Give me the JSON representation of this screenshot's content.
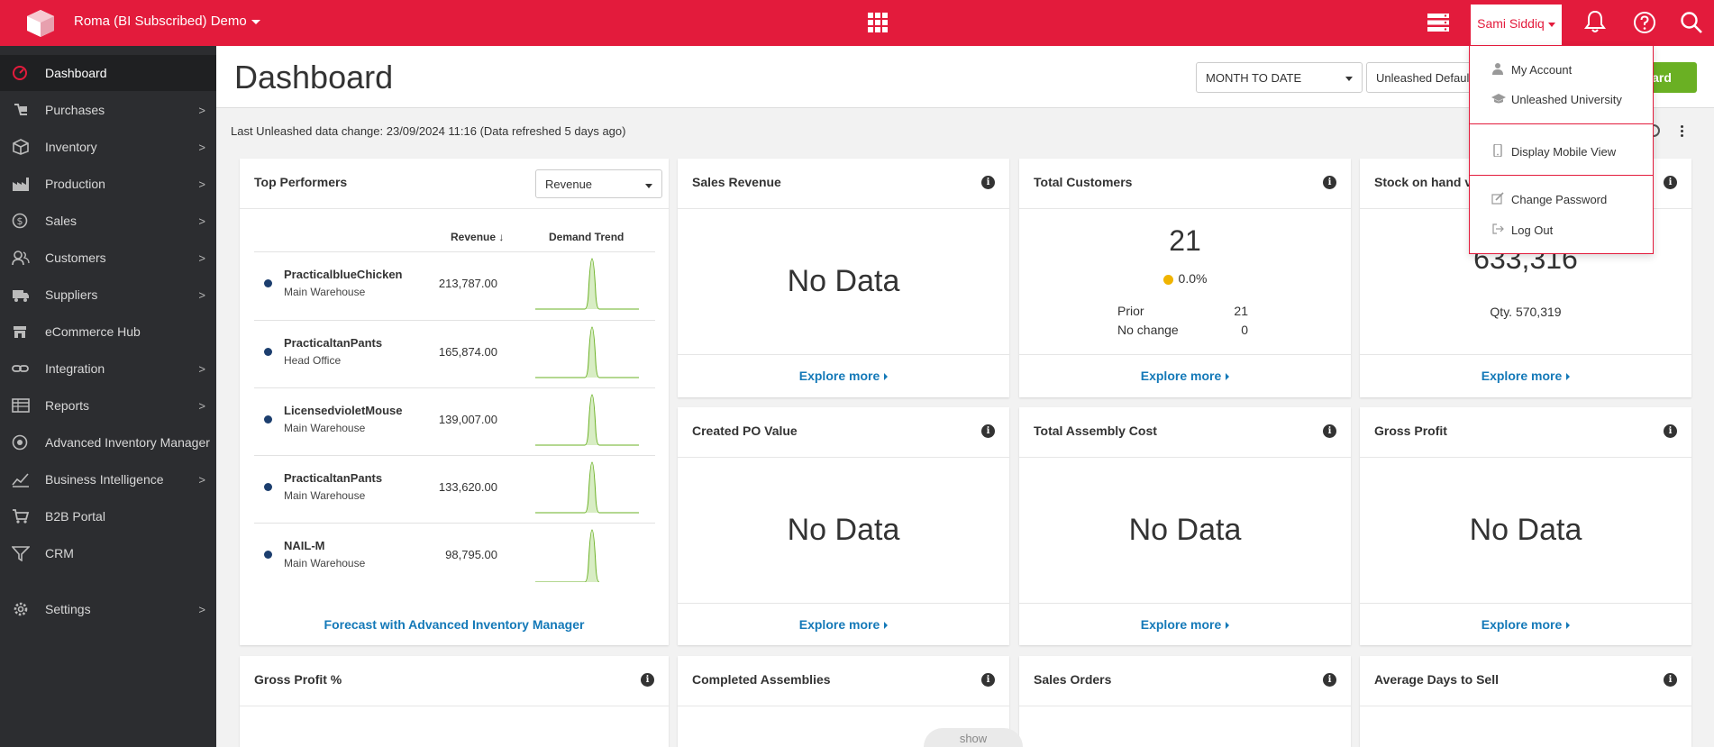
{
  "topbar": {
    "company": "Roma (BI Subscribed) Demo",
    "user": "Sami Siddiq",
    "icons": [
      "logo-icon",
      "apps-grid-icon",
      "server-icon",
      "bell-icon",
      "help-icon",
      "search-icon"
    ]
  },
  "user_menu": {
    "items": [
      "My Account",
      "Unleashed University",
      "Display Mobile View",
      "Change Password",
      "Log Out"
    ]
  },
  "sidebar": {
    "items": [
      {
        "label": "Dashboard",
        "icon": "dashboard-icon",
        "has_children": false
      },
      {
        "label": "Purchases",
        "icon": "purchases-icon",
        "has_children": true
      },
      {
        "label": "Inventory",
        "icon": "inventory-icon",
        "has_children": true
      },
      {
        "label": "Production",
        "icon": "production-icon",
        "has_children": true
      },
      {
        "label": "Sales",
        "icon": "sales-icon",
        "has_children": true
      },
      {
        "label": "Customers",
        "icon": "customers-icon",
        "has_children": true
      },
      {
        "label": "Suppliers",
        "icon": "suppliers-icon",
        "has_children": true
      },
      {
        "label": "eCommerce Hub",
        "icon": "ecommerce-icon",
        "has_children": false
      },
      {
        "label": "Integration",
        "icon": "integration-icon",
        "has_children": true
      },
      {
        "label": "Reports",
        "icon": "reports-icon",
        "has_children": true
      },
      {
        "label": "Advanced Inventory Manager",
        "icon": "aim-icon",
        "has_children": false
      },
      {
        "label": "Business Intelligence",
        "icon": "bi-icon",
        "has_children": true
      },
      {
        "label": "B2B Portal",
        "icon": "cart-icon",
        "has_children": false
      },
      {
        "label": "CRM",
        "icon": "crm-icon",
        "has_children": false
      },
      {
        "label": "Settings",
        "icon": "settings-icon",
        "has_children": true
      }
    ]
  },
  "header": {
    "title": "Dashboard",
    "date_range": "MONTH TO DATE",
    "dashboard_select": "Unleashed Default",
    "green_button": "board"
  },
  "last_change": "Last Unleashed data change: 23/09/2024 11:16 (Data refreshed 5 days ago)",
  "top_performers": {
    "title": "Top Performers",
    "metric": "Revenue",
    "col_revenue": "Revenue",
    "col_trend": "Demand Trend",
    "rows": [
      {
        "name": "PracticalblueChicken",
        "warehouse": "Main Warehouse",
        "value": "213,787.00"
      },
      {
        "name": "PracticaltanPants",
        "warehouse": "Head Office",
        "value": "165,874.00"
      },
      {
        "name": "LicensedvioletMouse",
        "warehouse": "Main Warehouse",
        "value": "139,007.00"
      },
      {
        "name": "PracticaltanPants",
        "warehouse": "Main Warehouse",
        "value": "133,620.00"
      },
      {
        "name": "NAIL-M",
        "warehouse": "Main Warehouse",
        "value": "98,795.00"
      }
    ],
    "forecast_link": "Forecast with Advanced Inventory Manager"
  },
  "cards": {
    "sales_revenue": {
      "title": "Sales Revenue",
      "body": "No Data",
      "link": "Explore more"
    },
    "total_customers": {
      "title": "Total Customers",
      "value": "21",
      "change": "0.0%",
      "prior_label": "Prior",
      "prior_value": "21",
      "nochange_label": "No change",
      "nochange_value": "0",
      "link": "Explore more"
    },
    "stock_on_hand": {
      "title": "Stock on hand va",
      "value": "633,316",
      "qty": "Qty. 570,319",
      "link": "Explore more"
    },
    "created_po": {
      "title": "Created PO Value",
      "body": "No Data",
      "link": "Explore more"
    },
    "assembly_cost": {
      "title": "Total Assembly Cost",
      "body": "No Data",
      "link": "Explore more"
    },
    "gross_profit": {
      "title": "Gross Profit",
      "body": "No Data",
      "link": "Explore more"
    },
    "gross_profit_pct": {
      "title": "Gross Profit %"
    },
    "completed_assemblies": {
      "title": "Completed Assemblies"
    },
    "sales_orders": {
      "title": "Sales Orders"
    },
    "avg_days": {
      "title": "Average Days to Sell"
    }
  },
  "show_tab": "show",
  "colors": {
    "brand": "#e31b3c",
    "sidebar": "#2c2d30",
    "link": "#1479b8",
    "green": "#6ab023",
    "status_dot": "#f0b400"
  }
}
